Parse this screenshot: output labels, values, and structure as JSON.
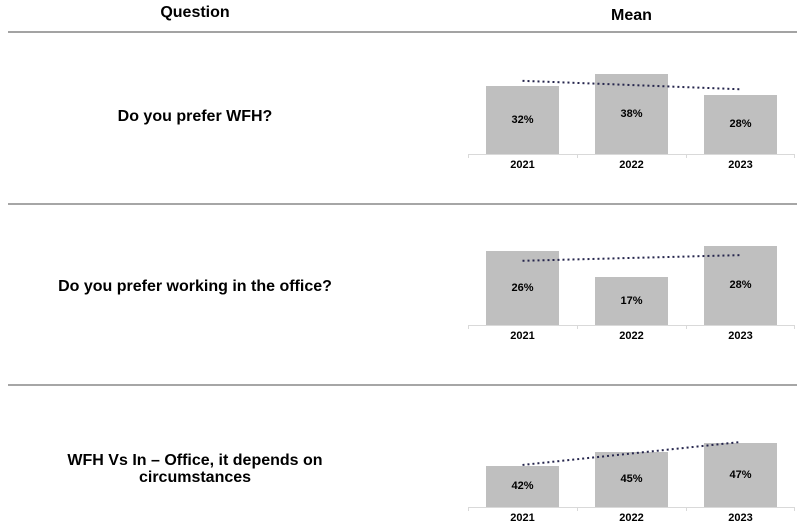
{
  "header": {
    "question_label": "Question",
    "mean_label": "Mean"
  },
  "rows": [
    {
      "question": "Do you prefer WFH?"
    },
    {
      "question": "Do you prefer working in the office?"
    },
    {
      "question": "WFH Vs In – Office, it depends on circumstances"
    }
  ],
  "colors": {
    "bar": "#bfbfbf",
    "axis": "#d9d9d9",
    "trendline": "#26264d",
    "divider": "#a6a6a6",
    "text": "#000000"
  },
  "chart_data": [
    {
      "type": "bar",
      "question": "Do you prefer WFH?",
      "categories": [
        "2021",
        "2022",
        "2023"
      ],
      "values": [
        32,
        38,
        28
      ],
      "value_labels": [
        "32%",
        "38%",
        "28%"
      ],
      "ylim": [
        0,
        45
      ],
      "trendline": true,
      "trendline_style": "dotted",
      "grid": false,
      "legend": false
    },
    {
      "type": "bar",
      "question": "Do you prefer working in the office?",
      "categories": [
        "2021",
        "2022",
        "2023"
      ],
      "values": [
        26,
        17,
        28
      ],
      "value_labels": [
        "26%",
        "17%",
        "28%"
      ],
      "ylim": [
        0,
        30
      ],
      "trendline": true,
      "trendline_style": "dotted",
      "grid": false,
      "legend": false
    },
    {
      "type": "bar",
      "question": "WFH Vs In – Office, it depends on circumstances",
      "categories": [
        "2021",
        "2022",
        "2023"
      ],
      "values": [
        42,
        45,
        47
      ],
      "value_labels": [
        "42%",
        "45%",
        "47%"
      ],
      "ylim": [
        33,
        50
      ],
      "trendline": true,
      "trendline_style": "dotted",
      "grid": false,
      "legend": false
    }
  ]
}
